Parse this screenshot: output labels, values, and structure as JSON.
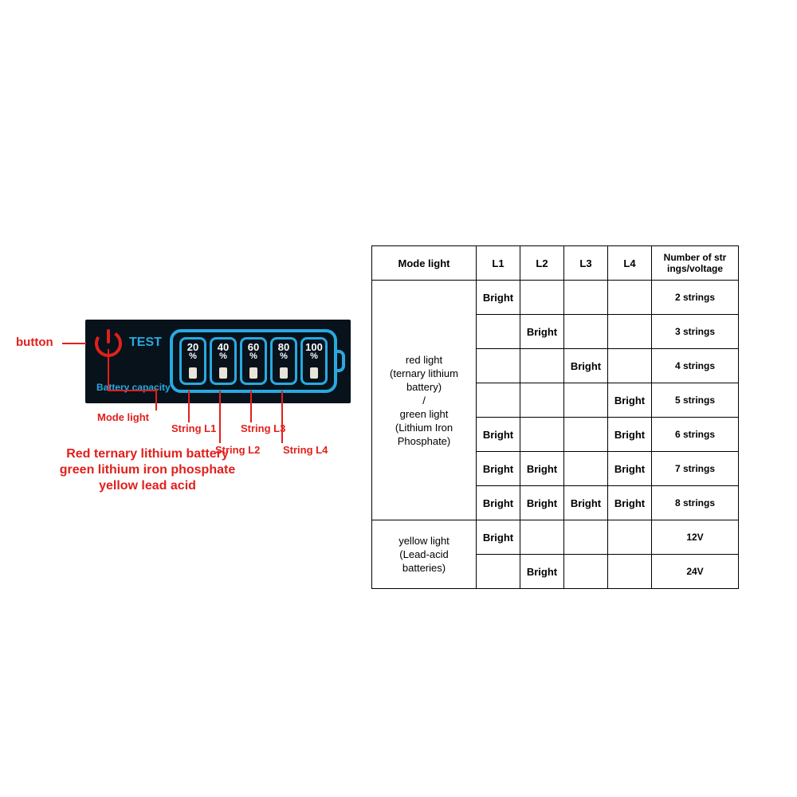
{
  "panel": {
    "test_label": "TEST",
    "capacity_label": "Battery capacity",
    "segments": [
      "20",
      "40",
      "60",
      "80",
      "100"
    ],
    "percent": "%",
    "colors": {
      "panel_bg": "#07121b",
      "accent": "#29a9e0",
      "seg_text": "#ffffff",
      "led": "#e9e3d8",
      "power_red": "#e1201c"
    }
  },
  "annotations": {
    "button": "button",
    "mode_light": "Mode light",
    "l1": "String L1",
    "l2": "String L2",
    "l3": "String L3",
    "l4": "String L4",
    "legend_line1": "Red ternary lithium battery",
    "legend_line2": "green lithium iron phosphate",
    "legend_line3": "yellow lead acid",
    "color": "#e1201c"
  },
  "table": {
    "headers": {
      "mode": "Mode light",
      "l1": "L1",
      "l2": "L2",
      "l3": "L3",
      "l4": "L4",
      "num": "Number of str\nings/voltage"
    },
    "bright": "Bright",
    "mode_red_green": "red light\n(ternary lithium\nbattery)\n/\ngreen light\n(Lithium Iron\nPhosphate)",
    "mode_yellow": "yellow light\n(Lead-acid\nbatteries)",
    "rows_rg": [
      {
        "l": [
          1,
          0,
          0,
          0
        ],
        "n": "2 strings"
      },
      {
        "l": [
          0,
          1,
          0,
          0
        ],
        "n": "3 strings"
      },
      {
        "l": [
          0,
          0,
          1,
          0
        ],
        "n": "4 strings"
      },
      {
        "l": [
          0,
          0,
          0,
          1
        ],
        "n": "5 strings"
      },
      {
        "l": [
          1,
          0,
          0,
          1
        ],
        "n": "6 strings"
      },
      {
        "l": [
          1,
          1,
          0,
          1
        ],
        "n": "7 strings"
      },
      {
        "l": [
          1,
          1,
          1,
          1
        ],
        "n": "8 strings"
      }
    ],
    "rows_y": [
      {
        "l": [
          1,
          0,
          0,
          0
        ],
        "n": "12V"
      },
      {
        "l": [
          0,
          1,
          0,
          0
        ],
        "n": "24V"
      }
    ],
    "border_color": "#000000",
    "text_color": "#000000"
  }
}
